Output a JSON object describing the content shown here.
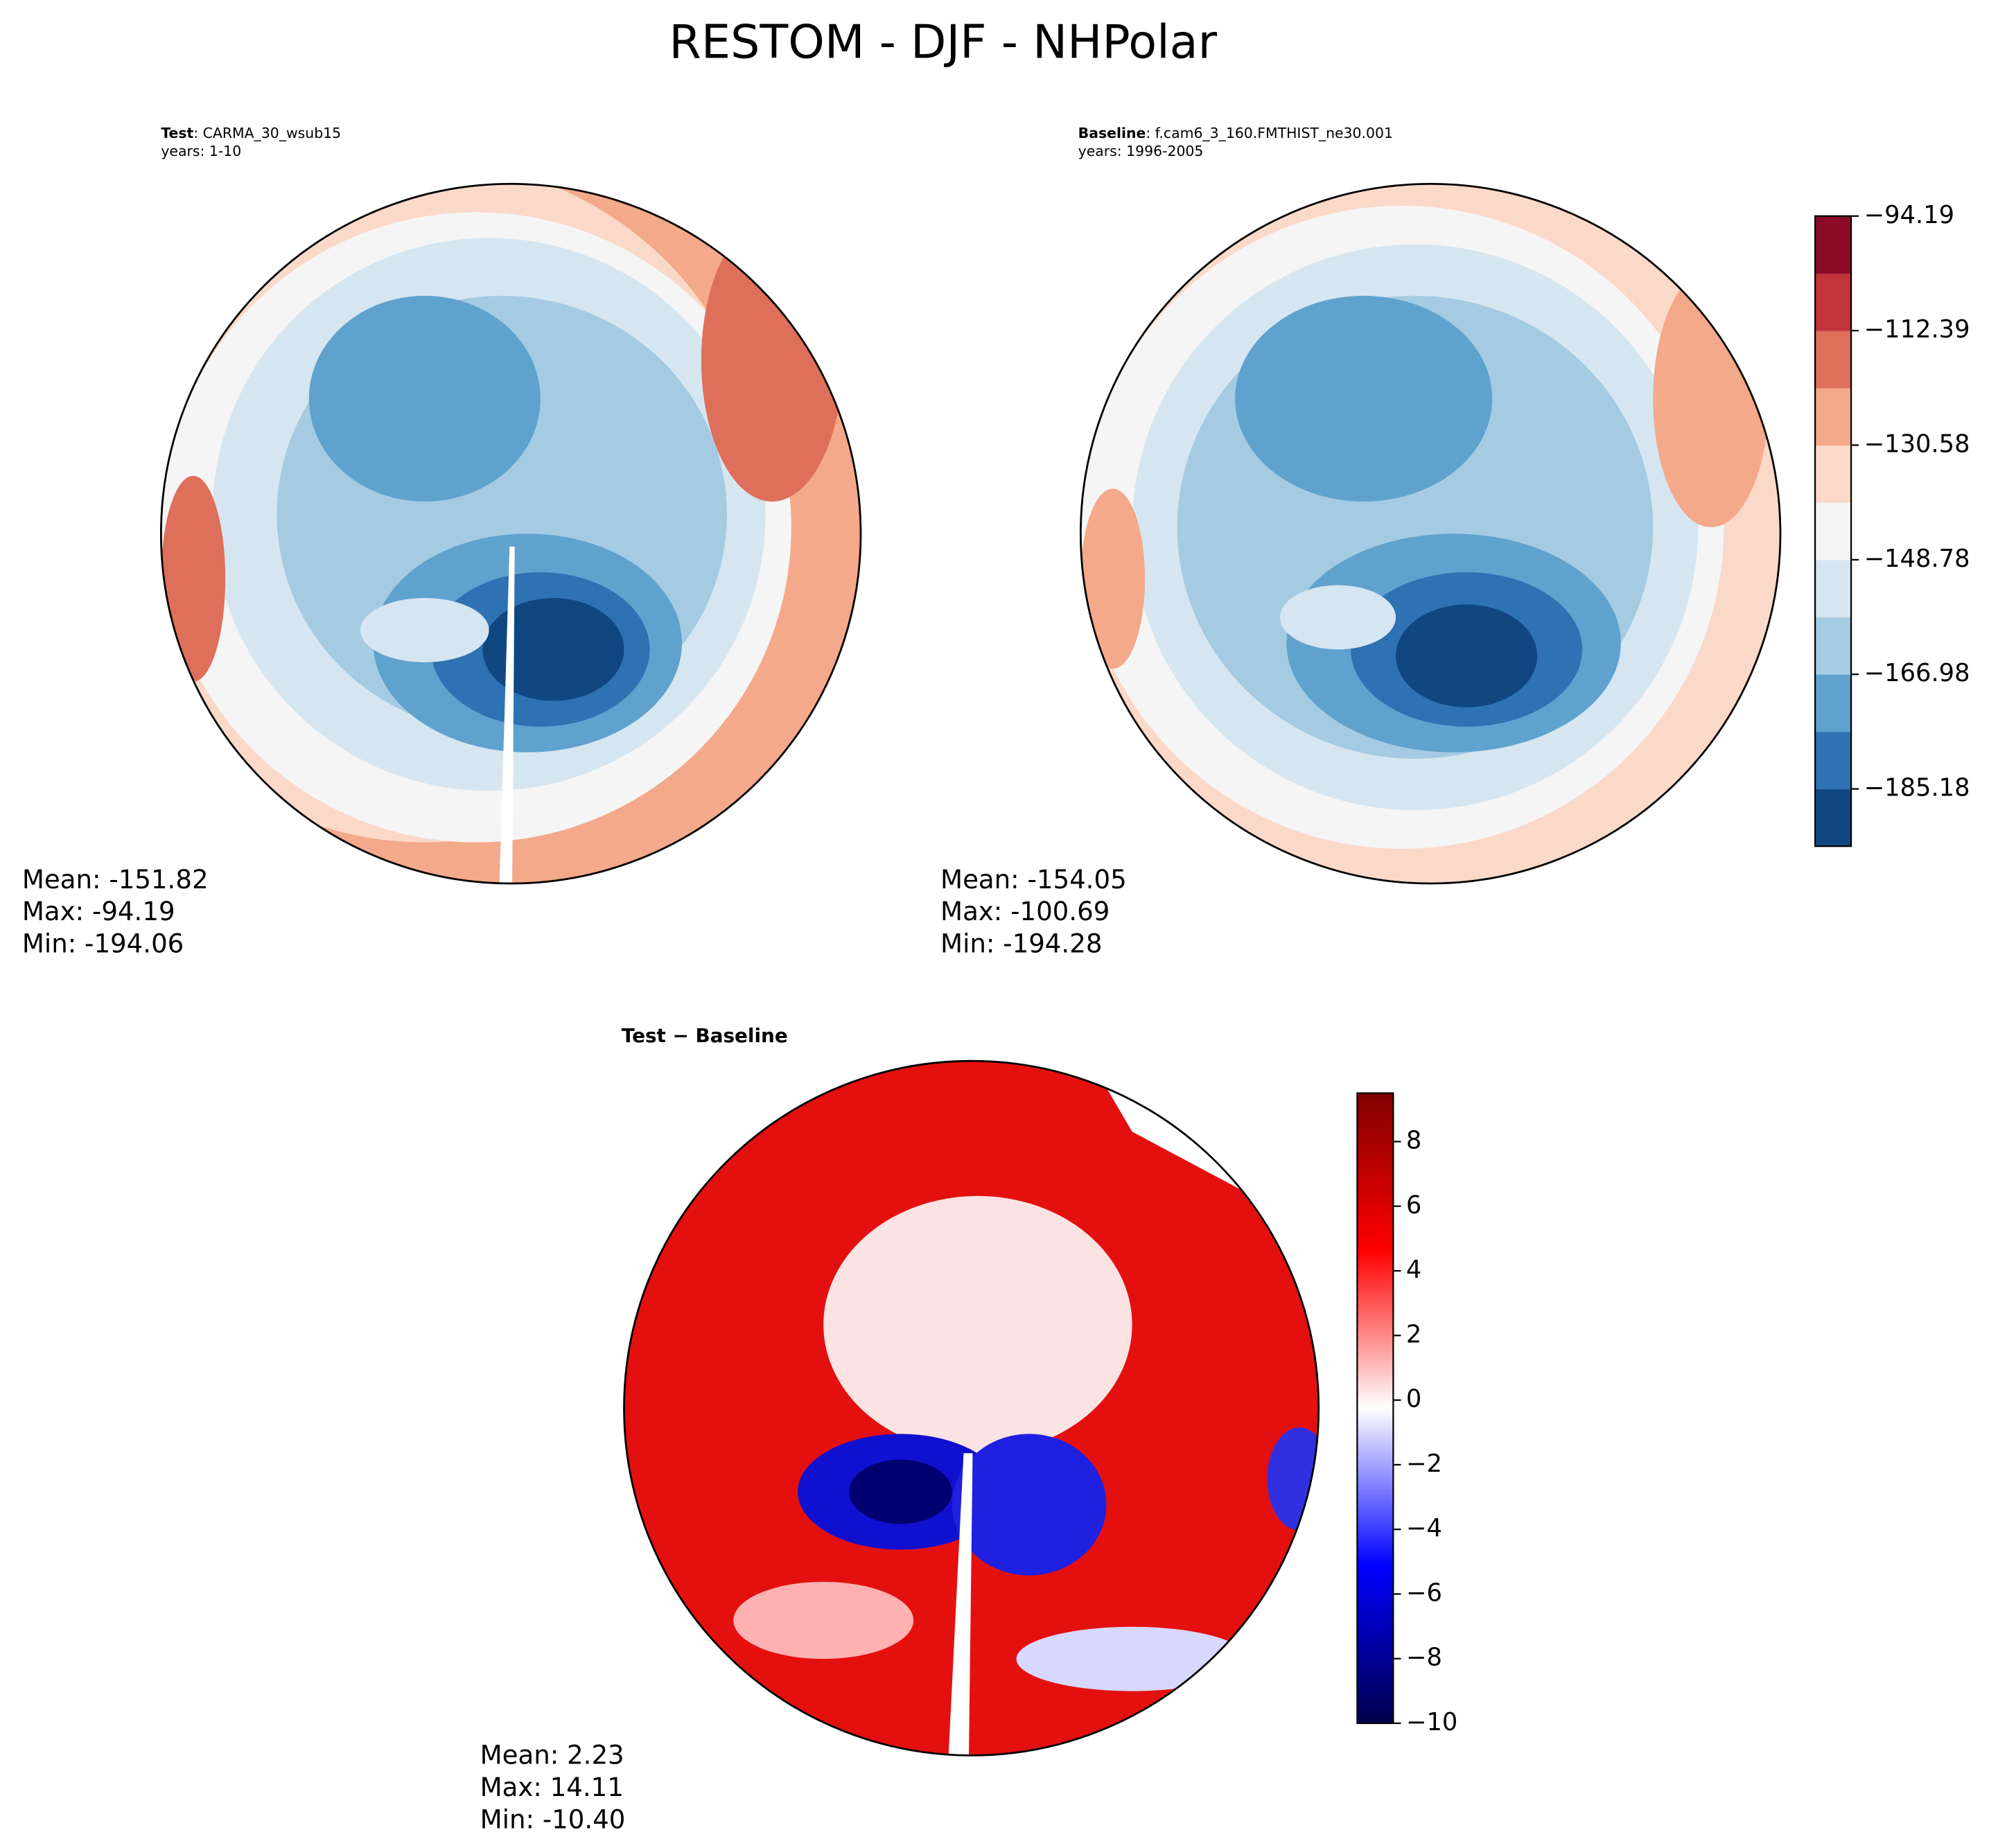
{
  "title": "RESTOM - DJF - NHPolar",
  "panels": [
    {
      "label_bold": "Test",
      "label_rest": ": CARMA_30_wsub15",
      "years": "years: 1-10",
      "stats": [
        "Mean: -151.82",
        "Max: -94.19",
        "Min: -194.06"
      ]
    },
    {
      "label_bold": "Baseline",
      "label_rest": ": f.cam6_3_160.FMTHIST_ne30.001",
      "years": "years: 1996-2005",
      "stats": [
        "Mean: -154.05",
        "Max: -100.69",
        "Min: -194.28"
      ]
    },
    {
      "label_bold": "Test − Baseline",
      "stats": [
        "Mean:  2.23",
        "Max: 14.11",
        "Min: -10.40"
      ]
    }
  ],
  "colorbars": [
    {
      "clim": [
        -194.28,
        -94.19
      ],
      "colors": [
        "#114781",
        "#2e72b3",
        "#5fa2ce",
        "#a4cbe2",
        "#d6e6f1",
        "#f5f5f5",
        "#fbd9c9",
        "#f4a98a",
        "#de6f5a",
        "#c0343a",
        "#8b0a25"
      ],
      "ticks": [
        {
          "value": -94.19,
          "label": "−94.19"
        },
        {
          "value": -112.39,
          "label": "−112.39"
        },
        {
          "value": -130.58,
          "label": "−130.58"
        },
        {
          "value": -148.78,
          "label": "−148.78"
        },
        {
          "value": -166.98,
          "label": "−166.98"
        },
        {
          "value": -185.18,
          "label": "−185.18"
        }
      ]
    },
    {
      "clim": [
        -10,
        9.5
      ],
      "colors": [
        "#00004c",
        "#0000ff",
        "#ffffff",
        "#ff0000",
        "#800000"
      ],
      "ticks": [
        {
          "value": -10,
          "label": "−10"
        },
        {
          "value": -8,
          "label": "−8"
        },
        {
          "value": -6,
          "label": "−6"
        },
        {
          "value": -4,
          "label": "−4"
        },
        {
          "value": -2,
          "label": "−2"
        },
        0,
        2,
        4,
        6,
        8
      ]
    }
  ]
}
